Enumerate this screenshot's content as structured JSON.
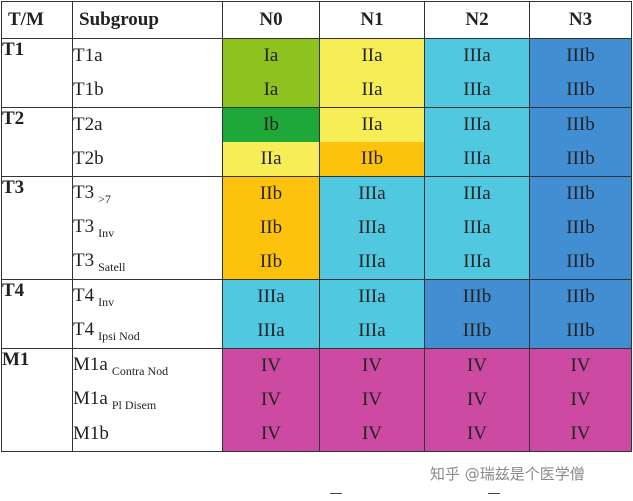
{
  "colors": {
    "Ia": "#8dc21f",
    "Ib": "#1ea83a",
    "IIa": "#f7ee57",
    "IIb": "#fdc20b",
    "IIIa": "#4fc8e0",
    "IIIb": "#428ed2",
    "IV": "#cc4aa1"
  },
  "header": {
    "tm": "T/M",
    "subgroup": "Subgroup",
    "n": [
      "N0",
      "N1",
      "N2",
      "N3"
    ]
  },
  "groups": [
    {
      "label": "T1",
      "rows": [
        {
          "main": "T1a",
          "sub": "",
          "stages": [
            "Ia",
            "IIa",
            "IIIa",
            "IIIb"
          ]
        },
        {
          "main": "T1b",
          "sub": "",
          "stages": [
            "Ia",
            "IIa",
            "IIIa",
            "IIIb"
          ]
        }
      ]
    },
    {
      "label": "T2",
      "rows": [
        {
          "main": "T2a",
          "sub": "",
          "stages": [
            "Ib",
            "IIa",
            "IIIa",
            "IIIb"
          ]
        },
        {
          "main": "T2b",
          "sub": "",
          "stages": [
            "IIa",
            "IIb",
            "IIIa",
            "IIIb"
          ]
        }
      ]
    },
    {
      "label": "T3",
      "rows": [
        {
          "main": "T3",
          "sub": ">7",
          "stages": [
            "IIb",
            "IIIa",
            "IIIa",
            "IIIb"
          ]
        },
        {
          "main": "T3",
          "sub": "Inv",
          "stages": [
            "IIb",
            "IIIa",
            "IIIa",
            "IIIb"
          ]
        },
        {
          "main": "T3",
          "sub": "Satell",
          "stages": [
            "IIb",
            "IIIa",
            "IIIa",
            "IIIb"
          ]
        }
      ]
    },
    {
      "label": "T4",
      "rows": [
        {
          "main": "T4",
          "sub": "Inv",
          "stages": [
            "IIIa",
            "IIIa",
            "IIIb",
            "IIIb"
          ]
        },
        {
          "main": "T4",
          "sub": "Ipsi Nod",
          "stages": [
            "IIIa",
            "IIIa",
            "IIIb",
            "IIIb"
          ]
        }
      ]
    },
    {
      "label": "M1",
      "rows": [
        {
          "main": "M1a",
          "sub": "Contra Nod",
          "stages": [
            "IV",
            "IV",
            "IV",
            "IV"
          ]
        },
        {
          "main": "M1a",
          "sub": "Pl Disem",
          "stages": [
            "IV",
            "IV",
            "IV",
            "IV"
          ]
        },
        {
          "main": "M1b",
          "sub": "",
          "stages": [
            "IV",
            "IV",
            "IV",
            "IV"
          ]
        }
      ]
    }
  ],
  "watermark": "知乎 @瑞兹是个医学僧"
}
